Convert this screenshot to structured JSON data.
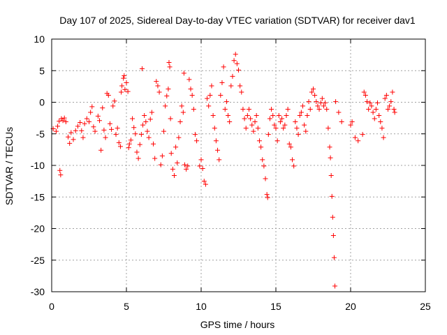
{
  "chart_data": {
    "type": "scatter",
    "title": "Day 107 of 2025, Sidereal Day-to-day VTEC variation (SDTVAR) for receiver dav1",
    "xlabel": "GPS time / hours",
    "ylabel": "SDTVAR / TECUs",
    "xlim": [
      0,
      25
    ],
    "ylim": [
      -30,
      10
    ],
    "xticks": [
      0,
      5,
      10,
      15,
      20,
      25
    ],
    "yticks": [
      10,
      5,
      0,
      -5,
      -10,
      -15,
      -20,
      -25,
      -30
    ],
    "grid": true,
    "marker": "+",
    "color": "#ff0000",
    "series": [
      {
        "name": "SDTVAR",
        "points": [
          [
            0.1,
            -4.2
          ],
          [
            0.3,
            -4.6
          ],
          [
            0.4,
            -3.8
          ],
          [
            0.5,
            -3.0
          ],
          [
            0.55,
            -10.8
          ],
          [
            0.6,
            -11.5
          ],
          [
            0.65,
            -2.6
          ],
          [
            0.75,
            -2.9
          ],
          [
            0.85,
            -2.5
          ],
          [
            0.95,
            -3.1
          ],
          [
            1.1,
            -5.5
          ],
          [
            1.2,
            -6.5
          ],
          [
            1.3,
            -4.8
          ],
          [
            1.45,
            -5.9
          ],
          [
            1.6,
            -4.5
          ],
          [
            1.75,
            -3.8
          ],
          [
            1.9,
            -3.2
          ],
          [
            2.0,
            -4.5
          ],
          [
            2.1,
            -5.6
          ],
          [
            2.2,
            -3.4
          ],
          [
            2.35,
            -2.6
          ],
          [
            2.5,
            -3.1
          ],
          [
            2.6,
            -1.6
          ],
          [
            2.7,
            -0.7
          ],
          [
            2.8,
            -3.9
          ],
          [
            2.9,
            -4.6
          ],
          [
            3.1,
            -2.2
          ],
          [
            3.2,
            -2.9
          ],
          [
            3.3,
            -7.6
          ],
          [
            3.4,
            -0.9
          ],
          [
            3.5,
            -4.4
          ],
          [
            3.6,
            -5.6
          ],
          [
            3.7,
            1.4
          ],
          [
            3.8,
            1.1
          ],
          [
            3.9,
            -3.4
          ],
          [
            4.0,
            -4.3
          ],
          [
            4.1,
            -0.6
          ],
          [
            4.2,
            0.2
          ],
          [
            4.3,
            -5.1
          ],
          [
            4.4,
            -4.1
          ],
          [
            4.5,
            -6.4
          ],
          [
            4.6,
            -7.0
          ],
          [
            4.65,
            1.6
          ],
          [
            4.7,
            2.6
          ],
          [
            4.8,
            3.8
          ],
          [
            4.85,
            4.2
          ],
          [
            4.9,
            2.0
          ],
          [
            5.0,
            3.1
          ],
          [
            5.1,
            1.7
          ],
          [
            5.15,
            -7.2
          ],
          [
            5.2,
            -6.6
          ],
          [
            5.3,
            -6.0
          ],
          [
            5.4,
            -2.6
          ],
          [
            5.5,
            -4.0
          ],
          [
            5.6,
            -5.0
          ],
          [
            5.7,
            -7.9
          ],
          [
            5.8,
            -8.9
          ],
          [
            5.9,
            -6.7
          ],
          [
            6.0,
            -5.1
          ],
          [
            6.05,
            5.3
          ],
          [
            6.1,
            -3.6
          ],
          [
            6.2,
            -2.1
          ],
          [
            6.3,
            -3.1
          ],
          [
            6.4,
            -4.6
          ],
          [
            6.5,
            -5.6
          ],
          [
            6.6,
            -2.7
          ],
          [
            6.7,
            -1.6
          ],
          [
            6.8,
            -6.6
          ],
          [
            6.9,
            -8.9
          ],
          [
            7.0,
            3.3
          ],
          [
            7.1,
            2.6
          ],
          [
            7.2,
            1.6
          ],
          [
            7.3,
            -9.9
          ],
          [
            7.4,
            -8.5
          ],
          [
            7.5,
            -4.6
          ],
          [
            7.6,
            -0.6
          ],
          [
            7.7,
            1.0
          ],
          [
            7.8,
            2.1
          ],
          [
            7.85,
            6.3
          ],
          [
            7.9,
            5.6
          ],
          [
            7.95,
            -2.6
          ],
          [
            8.0,
            -8.1
          ],
          [
            8.1,
            -10.6
          ],
          [
            8.2,
            -11.6
          ],
          [
            8.3,
            -7.1
          ],
          [
            8.4,
            -9.6
          ],
          [
            8.5,
            -5.6
          ],
          [
            8.6,
            -3.1
          ],
          [
            8.7,
            -0.6
          ],
          [
            8.8,
            -1.6
          ],
          [
            8.85,
            4.6
          ],
          [
            8.9,
            -9.9
          ],
          [
            9.0,
            -10.6
          ],
          [
            9.1,
            -10.1
          ],
          [
            9.2,
            3.6
          ],
          [
            9.3,
            2.1
          ],
          [
            9.4,
            1.1
          ],
          [
            9.5,
            -1.1
          ],
          [
            9.6,
            -5.1
          ],
          [
            9.7,
            -6.1
          ],
          [
            9.9,
            -10.1
          ],
          [
            10.0,
            -9.1
          ],
          [
            10.1,
            -10.5
          ],
          [
            10.2,
            -12.5
          ],
          [
            10.3,
            -13.0
          ],
          [
            10.4,
            0.6
          ],
          [
            10.5,
            -0.6
          ],
          [
            10.6,
            1.1
          ],
          [
            10.7,
            2.6
          ],
          [
            10.8,
            -2.1
          ],
          [
            10.9,
            -4.1
          ],
          [
            11.0,
            -6.1
          ],
          [
            11.1,
            -7.6
          ],
          [
            11.2,
            -9.1
          ],
          [
            11.3,
            1.1
          ],
          [
            11.4,
            3.1
          ],
          [
            11.5,
            5.6
          ],
          [
            11.6,
            -1.1
          ],
          [
            11.7,
            0.1
          ],
          [
            11.8,
            -2.1
          ],
          [
            11.9,
            -3.1
          ],
          [
            12.0,
            2.6
          ],
          [
            12.1,
            4.1
          ],
          [
            12.2,
            6.6
          ],
          [
            12.3,
            7.6
          ],
          [
            12.4,
            6.1
          ],
          [
            12.5,
            5.1
          ],
          [
            12.6,
            2.6
          ],
          [
            12.7,
            1.6
          ],
          [
            12.8,
            -1.1
          ],
          [
            12.9,
            -2.6
          ],
          [
            13.0,
            -4.1
          ],
          [
            13.1,
            -2.1
          ],
          [
            13.2,
            -1.1
          ],
          [
            13.3,
            -2.6
          ],
          [
            13.4,
            -3.6
          ],
          [
            13.5,
            -4.6
          ],
          [
            13.6,
            -3.1
          ],
          [
            13.7,
            -2.1
          ],
          [
            13.8,
            -4.1
          ],
          [
            13.9,
            -6.1
          ],
          [
            14.0,
            -7.1
          ],
          [
            14.1,
            -9.1
          ],
          [
            14.2,
            -10.1
          ],
          [
            14.3,
            -12.1
          ],
          [
            14.4,
            -14.6
          ],
          [
            14.45,
            -15.1
          ],
          [
            14.5,
            -5.1
          ],
          [
            14.6,
            -2.6
          ],
          [
            14.7,
            -1.1
          ],
          [
            14.8,
            -2.1
          ],
          [
            14.9,
            -3.6
          ],
          [
            15.0,
            -4.1
          ],
          [
            15.1,
            -6.1
          ],
          [
            15.2,
            -2.1
          ],
          [
            15.3,
            -3.1
          ],
          [
            15.4,
            -2.6
          ],
          [
            15.5,
            -4.1
          ],
          [
            15.6,
            -3.6
          ],
          [
            15.7,
            -2.1
          ],
          [
            15.8,
            -1.1
          ],
          [
            15.9,
            -6.6
          ],
          [
            16.0,
            -7.1
          ],
          [
            16.1,
            -9.1
          ],
          [
            16.2,
            -10.1
          ],
          [
            16.3,
            -3.1
          ],
          [
            16.4,
            -4.1
          ],
          [
            16.5,
            -5.1
          ],
          [
            16.6,
            -2.1
          ],
          [
            16.7,
            -1.6
          ],
          [
            16.8,
            -0.6
          ],
          [
            16.9,
            -3.6
          ],
          [
            17.0,
            -4.6
          ],
          [
            17.1,
            -2.1
          ],
          [
            17.2,
            0.1
          ],
          [
            17.3,
            -1.1
          ],
          [
            17.4,
            1.6
          ],
          [
            17.5,
            2.1
          ],
          [
            17.6,
            1.1
          ],
          [
            17.7,
            0.1
          ],
          [
            17.8,
            -0.6
          ],
          [
            17.9,
            -1.1
          ],
          [
            18.0,
            -0.1
          ],
          [
            18.1,
            0.6
          ],
          [
            18.2,
            -0.6
          ],
          [
            18.3,
            -0.1
          ],
          [
            18.4,
            -1.1
          ],
          [
            18.5,
            -4.1
          ],
          [
            18.6,
            -7.1
          ],
          [
            18.65,
            -8.8
          ],
          [
            18.7,
            -11.6
          ],
          [
            18.75,
            -14.9
          ],
          [
            18.8,
            -18.2
          ],
          [
            18.85,
            -21.1
          ],
          [
            18.9,
            -24.6
          ],
          [
            18.95,
            -29.1
          ],
          [
            19.0,
            0.1
          ],
          [
            19.2,
            -1.6
          ],
          [
            19.4,
            -3.1
          ],
          [
            20.0,
            -3.6
          ],
          [
            20.1,
            -3.1
          ],
          [
            20.3,
            -5.6
          ],
          [
            20.5,
            -6.1
          ],
          [
            20.8,
            -5.1
          ],
          [
            20.9,
            1.6
          ],
          [
            21.0,
            1.1
          ],
          [
            21.1,
            0.1
          ],
          [
            21.2,
            -1.1
          ],
          [
            21.3,
            -0.1
          ],
          [
            21.4,
            -0.6
          ],
          [
            21.5,
            -1.6
          ],
          [
            21.6,
            -2.6
          ],
          [
            21.7,
            -1.1
          ],
          [
            21.8,
            -0.1
          ],
          [
            21.9,
            -2.1
          ],
          [
            22.0,
            -3.1
          ],
          [
            22.1,
            -4.1
          ],
          [
            22.2,
            -5.6
          ],
          [
            22.3,
            0.6
          ],
          [
            22.4,
            1.1
          ],
          [
            22.5,
            -1.1
          ],
          [
            22.6,
            -0.6
          ],
          [
            22.7,
            0.1
          ],
          [
            22.8,
            1.6
          ],
          [
            22.9,
            -1.1
          ],
          [
            22.95,
            -1.6
          ]
        ]
      }
    ]
  }
}
